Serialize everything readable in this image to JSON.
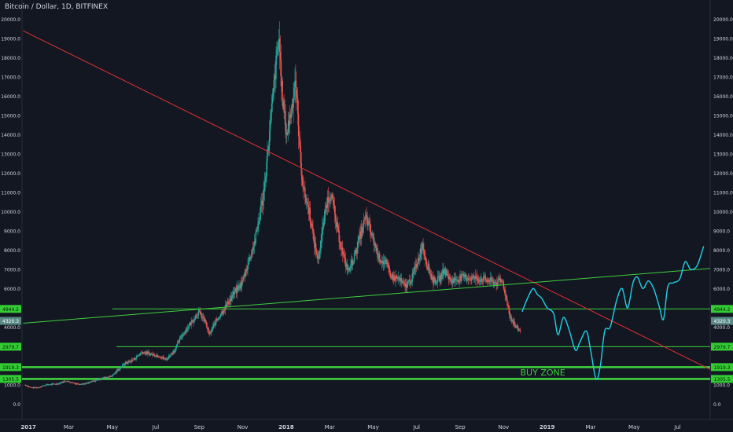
{
  "chart_data": {
    "type": "candlestick",
    "title": "Bitcoin / Dollar, 1D, BITFINEX",
    "ylim": [
      -800,
      21000
    ],
    "y_ticks": [
      0,
      1000,
      2000,
      3000,
      4000,
      5000,
      6000,
      7000,
      8000,
      9000,
      10000,
      11000,
      12000,
      13000,
      14000,
      15000,
      16000,
      17000,
      18000,
      19000,
      20000
    ],
    "x_ticks": [
      "2017",
      "Mar",
      "May",
      "Jul",
      "Sep",
      "Nov",
      "2018",
      "Mar",
      "May",
      "Jul",
      "Sep",
      "Nov",
      "2019",
      "Mar",
      "May",
      "Jul"
    ],
    "x_tick_months": [
      0,
      2,
      4,
      6,
      8,
      10,
      12,
      14,
      16,
      18,
      20,
      22,
      24,
      26,
      28,
      30
    ],
    "x_range_months": [
      -0.15,
      31.5
    ],
    "price_path": [
      [
        0,
        1000
      ],
      [
        0.3,
        850
      ],
      [
        0.6,
        850
      ],
      [
        1,
        1000
      ],
      [
        1.5,
        1050
      ],
      [
        1.9,
        1200
      ],
      [
        2.4,
        1050
      ],
      [
        2.8,
        1050
      ],
      [
        3.2,
        1200
      ],
      [
        3.6,
        1350
      ],
      [
        4.0,
        1450
      ],
      [
        4.6,
        2100
      ],
      [
        5.0,
        2300
      ],
      [
        5.4,
        2700
      ],
      [
        5.8,
        2600
      ],
      [
        6.2,
        2500
      ],
      [
        6.5,
        2300
      ],
      [
        6.9,
        2800
      ],
      [
        7.2,
        3500
      ],
      [
        7.7,
        4300
      ],
      [
        8.0,
        4800
      ],
      [
        8.3,
        4300
      ],
      [
        8.5,
        3600
      ],
      [
        8.8,
        4300
      ],
      [
        9.2,
        5000
      ],
      [
        9.6,
        5700
      ],
      [
        10.0,
        6300
      ],
      [
        10.3,
        7400
      ],
      [
        10.6,
        8500
      ],
      [
        11.0,
        11000
      ],
      [
        11.3,
        14500
      ],
      [
        11.55,
        17500
      ],
      [
        11.7,
        19000
      ],
      [
        11.85,
        16000
      ],
      [
        12.05,
        14000
      ],
      [
        12.3,
        15500
      ],
      [
        12.45,
        17000
      ],
      [
        12.7,
        12500
      ],
      [
        12.85,
        11000
      ],
      [
        13.1,
        10000
      ],
      [
        13.3,
        8500
      ],
      [
        13.5,
        7500
      ],
      [
        13.7,
        9000
      ],
      [
        13.9,
        10500
      ],
      [
        14.1,
        11000
      ],
      [
        14.3,
        9500
      ],
      [
        14.5,
        8500
      ],
      [
        14.7,
        7500
      ],
      [
        14.9,
        6900
      ],
      [
        15.2,
        7800
      ],
      [
        15.45,
        8800
      ],
      [
        15.7,
        9700
      ],
      [
        15.9,
        9000
      ],
      [
        16.1,
        8300
      ],
      [
        16.3,
        7600
      ],
      [
        16.6,
        7300
      ],
      [
        16.9,
        6600
      ],
      [
        17.2,
        6500
      ],
      [
        17.5,
        6100
      ],
      [
        17.8,
        6500
      ],
      [
        18.1,
        7500
      ],
      [
        18.3,
        8300
      ],
      [
        18.5,
        7300
      ],
      [
        18.8,
        6400
      ],
      [
        19.1,
        6500
      ],
      [
        19.3,
        7000
      ],
      [
        19.6,
        6400
      ],
      [
        19.9,
        6500
      ],
      [
        20.2,
        6600
      ],
      [
        20.6,
        6550
      ],
      [
        21.0,
        6500
      ],
      [
        21.4,
        6400
      ],
      [
        21.7,
        6300
      ],
      [
        21.9,
        6400
      ],
      [
        22.0,
        6300
      ],
      [
        22.15,
        5500
      ],
      [
        22.35,
        4500
      ],
      [
        22.6,
        4000
      ],
      [
        22.8,
        3800
      ]
    ],
    "trendlines": [
      {
        "color": "#e03030",
        "from": [
          -0.1,
          19400
        ],
        "to": [
          31.5,
          1800
        ]
      },
      {
        "color": "#3fcf3f",
        "from": [
          -0.1,
          4200
        ],
        "to": [
          31.5,
          7050
        ]
      }
    ],
    "levels": [
      {
        "label": "4944.2",
        "value": 4944.2,
        "from_month": 4.0
      },
      {
        "label": "2979.7",
        "value": 2979.7,
        "from_month": 4.2
      },
      {
        "label": "1919.3",
        "value": 1919.3,
        "from_month": -0.15,
        "thick": true
      },
      {
        "label": "1305.5",
        "value": 1305.5,
        "from_month": -0.15,
        "thick": true
      }
    ],
    "current_price": {
      "label": "4320.3",
      "value": 4320.3
    },
    "projection": [
      [
        22.85,
        4800
      ],
      [
        23.1,
        5500
      ],
      [
        23.35,
        6000
      ],
      [
        23.55,
        5700
      ],
      [
        23.75,
        5500
      ],
      [
        24.0,
        5000
      ],
      [
        24.3,
        4700
      ],
      [
        24.5,
        3600
      ],
      [
        24.75,
        4500
      ],
      [
        25.0,
        3900
      ],
      [
        25.3,
        2800
      ],
      [
        25.5,
        3200
      ],
      [
        25.8,
        3800
      ],
      [
        26.0,
        2800
      ],
      [
        26.25,
        1300
      ],
      [
        26.45,
        2000
      ],
      [
        26.65,
        3800
      ],
      [
        26.9,
        4000
      ],
      [
        27.2,
        5400
      ],
      [
        27.45,
        6000
      ],
      [
        27.7,
        5000
      ],
      [
        27.95,
        6300
      ],
      [
        28.15,
        6600
      ],
      [
        28.4,
        6000
      ],
      [
        28.65,
        6400
      ],
      [
        28.9,
        6000
      ],
      [
        29.15,
        5100
      ],
      [
        29.35,
        4400
      ],
      [
        29.55,
        6100
      ],
      [
        29.8,
        6300
      ],
      [
        30.1,
        6500
      ],
      [
        30.35,
        7400
      ],
      [
        30.6,
        7000
      ],
      [
        30.9,
        7200
      ],
      [
        31.2,
        8200
      ]
    ],
    "annotations": [
      {
        "text": "BUY ZONE",
        "x_month": 23.8,
        "y": 1650
      }
    ],
    "colors": {
      "bg": "#131722",
      "up": "#26a69a",
      "down": "#ef5350",
      "level": "#3fcf3f",
      "label_bg": "#33cc33",
      "projection": "#1fd1e6",
      "trend_red": "#e03030",
      "text": "#d1d4dc"
    }
  }
}
